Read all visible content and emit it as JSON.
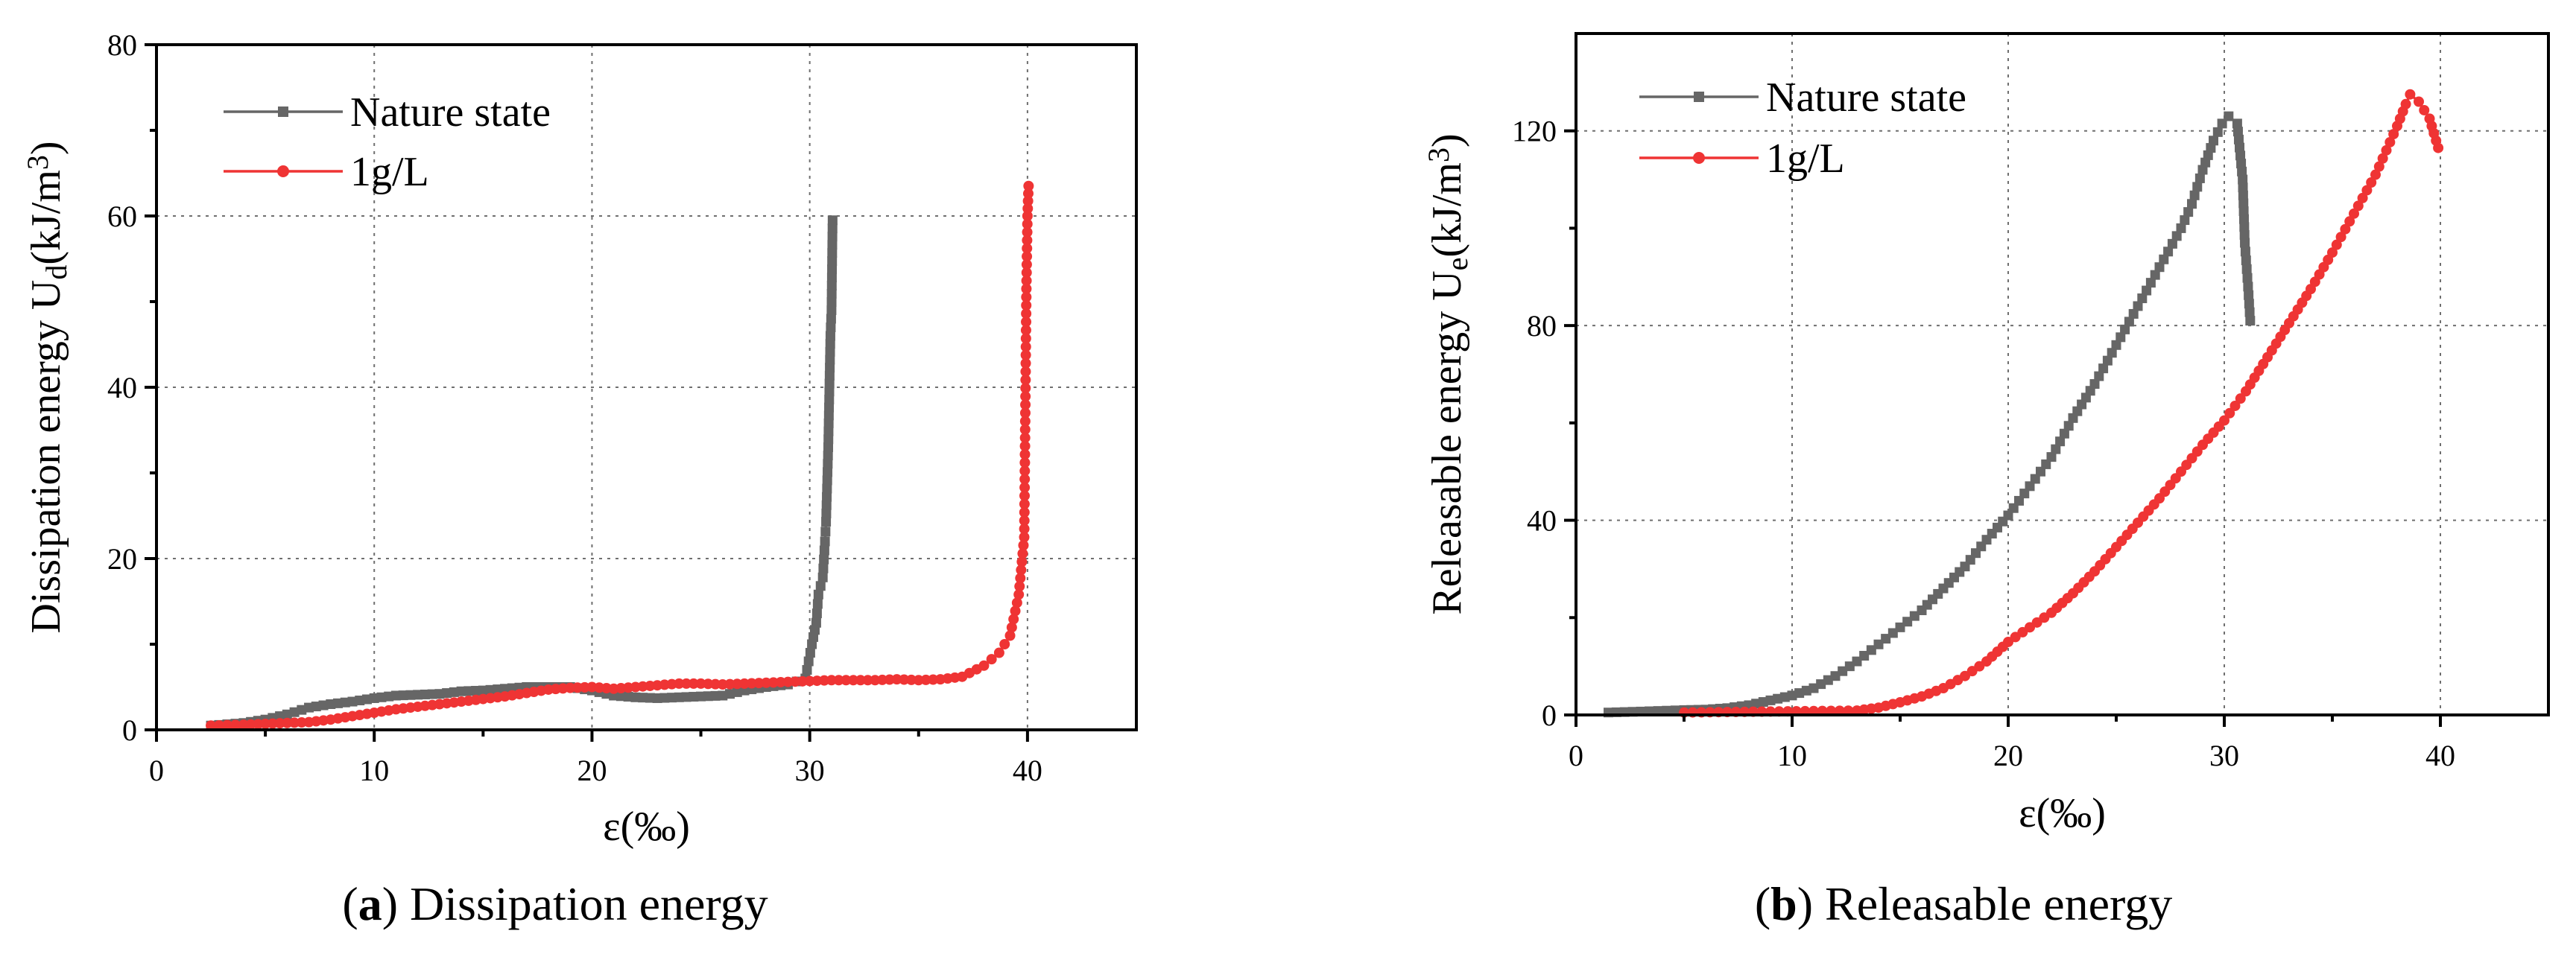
{
  "chart_data": [
    {
      "type": "line",
      "panel": "a",
      "caption_letter": "a",
      "caption_text": "Dissipation energy",
      "xlabel": "ε(‰)",
      "ylabel_main": "Dissipation energy U",
      "ylabel_sub": "d",
      "ylabel_unit": "(kJ/m",
      "ylabel_sup": "3",
      "ylabel_close": ")",
      "xlim": [
        0,
        45
      ],
      "ylim": [
        0,
        80
      ],
      "xticks": [
        0,
        10,
        20,
        30,
        40
      ],
      "yticks": [
        0,
        20,
        40,
        60,
        80
      ],
      "xtick_labels": [
        "0",
        "10",
        "20",
        "30",
        "40"
      ],
      "ytick_labels": [
        "0",
        "20",
        "40",
        "60",
        "80"
      ],
      "grid": true,
      "legend_position": "top-left",
      "series": [
        {
          "name": "Nature state",
          "color": "#666666",
          "marker": "square",
          "points": [
            [
              2.5,
              0.5
            ],
            [
              4,
              0.8
            ],
            [
              5,
              1.2
            ],
            [
              6,
              1.8
            ],
            [
              7,
              2.6
            ],
            [
              8,
              3.0
            ],
            [
              9,
              3.3
            ],
            [
              10,
              3.7
            ],
            [
              11,
              4.0
            ],
            [
              12,
              4.1
            ],
            [
              13,
              4.2
            ],
            [
              14,
              4.5
            ],
            [
              15,
              4.6
            ],
            [
              16,
              4.8
            ],
            [
              17,
              5.0
            ],
            [
              18,
              5.0
            ],
            [
              19,
              5.0
            ],
            [
              20,
              4.6
            ],
            [
              21,
              4.0
            ],
            [
              22,
              3.8
            ],
            [
              23,
              3.7
            ],
            [
              24,
              3.8
            ],
            [
              25,
              3.9
            ],
            [
              26,
              4.0
            ],
            [
              27,
              4.6
            ],
            [
              28,
              5.0
            ],
            [
              29,
              5.3
            ],
            [
              29.8,
              6.0
            ],
            [
              30.1,
              10.0
            ],
            [
              30.3,
              12.5
            ],
            [
              30.4,
              15.8
            ],
            [
              30.6,
              17.8
            ],
            [
              30.7,
              22.0
            ],
            [
              30.75,
              24.3
            ],
            [
              30.85,
              33.0
            ],
            [
              30.95,
              46.0
            ],
            [
              31.0,
              49.0
            ],
            [
              31.05,
              59.5
            ]
          ]
        },
        {
          "name": "1g/L",
          "color": "#ef3434",
          "marker": "circle",
          "points": [
            [
              2.5,
              0.5
            ],
            [
              4,
              0.6
            ],
            [
              5,
              0.7
            ],
            [
              6,
              0.8
            ],
            [
              7,
              0.9
            ],
            [
              8,
              1.2
            ],
            [
              9,
              1.6
            ],
            [
              10,
              2.0
            ],
            [
              11,
              2.4
            ],
            [
              12,
              2.7
            ],
            [
              13,
              3.0
            ],
            [
              14,
              3.3
            ],
            [
              15,
              3.6
            ],
            [
              16,
              3.9
            ],
            [
              17,
              4.3
            ],
            [
              18,
              4.7
            ],
            [
              19,
              4.9
            ],
            [
              20,
              5.0
            ],
            [
              21,
              4.8
            ],
            [
              22,
              5.0
            ],
            [
              23,
              5.2
            ],
            [
              24,
              5.4
            ],
            [
              25,
              5.4
            ],
            [
              26,
              5.3
            ],
            [
              27,
              5.4
            ],
            [
              28,
              5.5
            ],
            [
              29,
              5.6
            ],
            [
              30,
              5.7
            ],
            [
              31,
              5.8
            ],
            [
              32,
              5.8
            ],
            [
              33,
              5.8
            ],
            [
              34,
              5.9
            ],
            [
              35,
              5.8
            ],
            [
              36,
              5.9
            ],
            [
              37,
              6.2
            ],
            [
              38,
              7.5
            ],
            [
              38.7,
              9.0
            ],
            [
              39.2,
              11.0
            ],
            [
              39.6,
              15.8
            ],
            [
              39.85,
              22.5
            ],
            [
              39.95,
              51.5
            ],
            [
              40.0,
              60.0
            ],
            [
              40.05,
              63.5
            ]
          ]
        }
      ]
    },
    {
      "type": "line",
      "panel": "b",
      "caption_letter": "b",
      "caption_text": "Releasable energy",
      "xlabel": "ε(‰)",
      "ylabel_main": "Releasable energy U",
      "ylabel_sub": "e",
      "ylabel_unit": "(kJ/m",
      "ylabel_sup": "3",
      "ylabel_close": ")",
      "xlim": [
        0,
        45
      ],
      "ylim": [
        0,
        140
      ],
      "xticks": [
        0,
        10,
        20,
        30,
        40
      ],
      "yticks": [
        0,
        40,
        80,
        120
      ],
      "xtick_labels": [
        "0",
        "10",
        "20",
        "30",
        "40"
      ],
      "ytick_labels": [
        "0",
        "40",
        "80",
        "120"
      ],
      "grid": true,
      "legend_position": "top-left",
      "series": [
        {
          "name": "Nature state",
          "color": "#666666",
          "marker": "square",
          "points": [
            [
              1.5,
              0.5
            ],
            [
              3,
              0.7
            ],
            [
              5,
              1.0
            ],
            [
              6,
              1.1
            ],
            [
              7,
              1.4
            ],
            [
              8,
              2.0
            ],
            [
              9,
              3.0
            ],
            [
              10,
              4.0
            ],
            [
              11,
              5.5
            ],
            [
              12,
              8.0
            ],
            [
              13,
              11.0
            ],
            [
              14,
              14.5
            ],
            [
              15,
              18.0
            ],
            [
              16,
              21.5
            ],
            [
              17,
              26.0
            ],
            [
              18,
              30.5
            ],
            [
              19,
              36.0
            ],
            [
              20,
              41.0
            ],
            [
              21,
              47.0
            ],
            [
              22,
              53.0
            ],
            [
              23,
              61.0
            ],
            [
              24,
              68.0
            ],
            [
              25,
              76.0
            ],
            [
              26,
              84.0
            ],
            [
              27,
              92.0
            ],
            [
              28,
              100.0
            ],
            [
              28.5,
              105.0
            ],
            [
              29,
              112.0
            ],
            [
              29.5,
              118.0
            ],
            [
              29.9,
              121.5
            ],
            [
              30.2,
              123.0
            ],
            [
              30.6,
              121.5
            ],
            [
              30.85,
              110.0
            ],
            [
              30.95,
              97.0
            ],
            [
              31.1,
              88.0
            ],
            [
              31.2,
              81.0
            ]
          ]
        },
        {
          "name": "1g/L",
          "color": "#ef3434",
          "marker": "circle",
          "points": [
            [
              5,
              0.5
            ],
            [
              7,
              0.6
            ],
            [
              9,
              0.7
            ],
            [
              11,
              0.8
            ],
            [
              13,
              0.9
            ],
            [
              14,
              1.5
            ],
            [
              15,
              2.6
            ],
            [
              16,
              3.8
            ],
            [
              17,
              5.5
            ],
            [
              18,
              8.0
            ],
            [
              19,
              11.0
            ],
            [
              20,
              15.0
            ],
            [
              21,
              18.0
            ],
            [
              22,
              21.0
            ],
            [
              23,
              25.0
            ],
            [
              24,
              29.5
            ],
            [
              25,
              34.5
            ],
            [
              26,
              39.5
            ],
            [
              27,
              44.5
            ],
            [
              28,
              50.0
            ],
            [
              29,
              55.5
            ],
            [
              30,
              60.5
            ],
            [
              31,
              66.5
            ],
            [
              32,
              73.5
            ],
            [
              33,
              80.5
            ],
            [
              34,
              87.5
            ],
            [
              35,
              95.0
            ],
            [
              36,
              103.0
            ],
            [
              37,
              111.0
            ],
            [
              37.5,
              116.0
            ],
            [
              38,
              121.0
            ],
            [
              38.4,
              125.5
            ],
            [
              38.6,
              127.5
            ],
            [
              39.0,
              126.0
            ],
            [
              39.5,
              122.5
            ],
            [
              39.9,
              116.5
            ]
          ]
        }
      ]
    }
  ]
}
